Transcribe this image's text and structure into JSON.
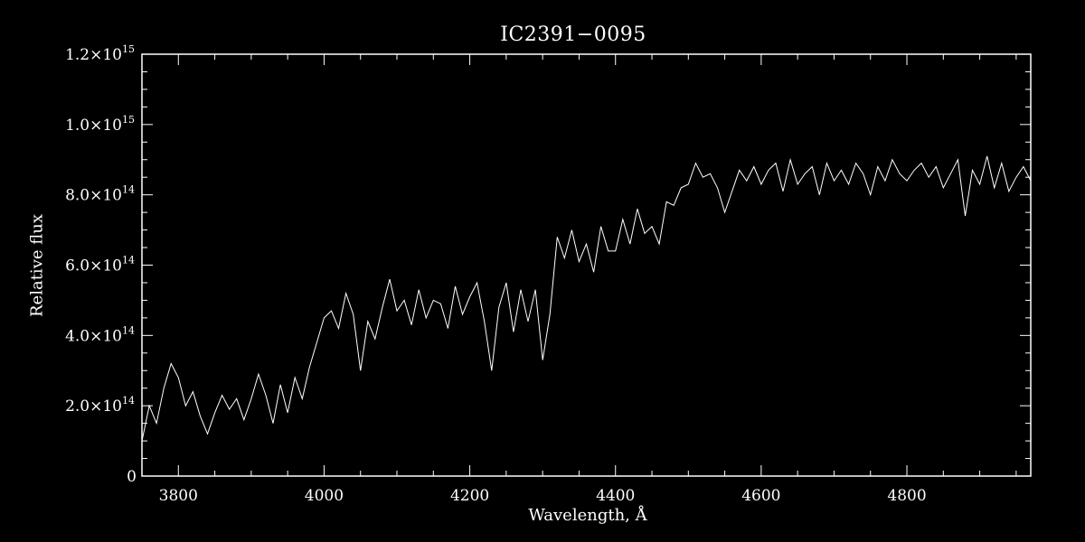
{
  "chart_data": {
    "type": "line",
    "title": "IC2391−0095",
    "xlabel": "Wavelength, Å",
    "ylabel": "Relative flux",
    "xlim": [
      3750,
      4970
    ],
    "ylim": [
      0,
      1200000000000000.0
    ],
    "x_ticks": [
      {
        "value": 3800,
        "label": "3800"
      },
      {
        "value": 4000,
        "label": "4000"
      },
      {
        "value": 4200,
        "label": "4200"
      },
      {
        "value": 4400,
        "label": "4400"
      },
      {
        "value": 4600,
        "label": "4600"
      },
      {
        "value": 4800,
        "label": "4800"
      }
    ],
    "y_ticks": [
      {
        "value": 0,
        "mantissa": "0",
        "exponent": ""
      },
      {
        "value": 200000000000000.0,
        "mantissa": "2.0×10",
        "exponent": "14"
      },
      {
        "value": 400000000000000.0,
        "mantissa": "4.0×10",
        "exponent": "14"
      },
      {
        "value": 600000000000000.0,
        "mantissa": "6.0×10",
        "exponent": "14"
      },
      {
        "value": 800000000000000.0,
        "mantissa": "8.0×10",
        "exponent": "14"
      },
      {
        "value": 1000000000000000.0,
        "mantissa": "1.0×10",
        "exponent": "15"
      },
      {
        "value": 1200000000000000.0,
        "mantissa": "1.2×10",
        "exponent": "15"
      }
    ],
    "grid": false,
    "legend": "none",
    "colors": {
      "background": "#000000",
      "foreground": "#ffffff"
    },
    "series": [
      {
        "x": [
          3750,
          3760,
          3770,
          3780,
          3790,
          3800,
          3810,
          3820,
          3830,
          3840,
          3850,
          3860,
          3870,
          3880,
          3890,
          3900,
          3910,
          3920,
          3930,
          3940,
          3950,
          3960,
          3970,
          3980,
          3990,
          4000,
          4010,
          4020,
          4030,
          4040,
          4050,
          4060,
          4070,
          4080,
          4090,
          4100,
          4110,
          4120,
          4130,
          4140,
          4150,
          4160,
          4170,
          4180,
          4190,
          4200,
          4210,
          4220,
          4230,
          4240,
          4250,
          4260,
          4270,
          4280,
          4290,
          4300,
          4310,
          4320,
          4330,
          4340,
          4350,
          4360,
          4370,
          4380,
          4390,
          4400,
          4410,
          4420,
          4430,
          4440,
          4450,
          4460,
          4470,
          4480,
          4490,
          4500,
          4510,
          4520,
          4530,
          4540,
          4550,
          4560,
          4570,
          4580,
          4590,
          4600,
          4610,
          4620,
          4630,
          4640,
          4650,
          4660,
          4670,
          4680,
          4690,
          4700,
          4710,
          4720,
          4730,
          4740,
          4750,
          4760,
          4770,
          4780,
          4790,
          4800,
          4810,
          4820,
          4830,
          4840,
          4850,
          4860,
          4870,
          4880,
          4890,
          4900,
          4910,
          4920,
          4930,
          4940,
          4950,
          4960,
          4970
        ],
        "y": [
          100000000000000.0,
          200000000000000.0,
          150000000000000.0,
          250000000000000.0,
          320000000000000.0,
          280000000000000.0,
          200000000000000.0,
          240000000000000.0,
          170000000000000.0,
          120000000000000.0,
          180000000000000.0,
          230000000000000.0,
          190000000000000.0,
          220000000000000.0,
          160000000000000.0,
          220000000000000.0,
          290000000000000.0,
          230000000000000.0,
          150000000000000.0,
          260000000000000.0,
          180000000000000.0,
          280000000000000.0,
          220000000000000.0,
          310000000000000.0,
          380000000000000.0,
          450000000000000.0,
          470000000000000.0,
          420000000000000.0,
          520000000000000.0,
          460000000000000.0,
          300000000000000.0,
          440000000000000.0,
          390000000000000.0,
          480000000000000.0,
          560000000000000.0,
          470000000000000.0,
          500000000000000.0,
          430000000000000.0,
          530000000000000.0,
          450000000000000.0,
          500000000000000.0,
          490000000000000.0,
          420000000000000.0,
          540000000000000.0,
          460000000000000.0,
          510000000000000.0,
          550000000000000.0,
          440000000000000.0,
          300000000000000.0,
          480000000000000.0,
          550000000000000.0,
          410000000000000.0,
          530000000000000.0,
          440000000000000.0,
          530000000000000.0,
          330000000000000.0,
          460000000000000.0,
          680000000000000.0,
          620000000000000.0,
          700000000000000.0,
          610000000000000.0,
          660000000000000.0,
          580000000000000.0,
          710000000000000.0,
          640000000000000.0,
          640000000000000.0,
          730000000000000.0,
          660000000000000.0,
          760000000000000.0,
          690000000000000.0,
          710000000000000.0,
          660000000000000.0,
          780000000000000.0,
          770000000000000.0,
          820000000000000.0,
          830000000000000.0,
          890000000000000.0,
          850000000000000.0,
          860000000000000.0,
          820000000000000.0,
          750000000000000.0,
          810000000000000.0,
          870000000000000.0,
          840000000000000.0,
          880000000000000.0,
          830000000000000.0,
          870000000000000.0,
          890000000000000.0,
          810000000000000.0,
          900000000000000.0,
          830000000000000.0,
          860000000000000.0,
          880000000000000.0,
          800000000000000.0,
          890000000000000.0,
          840000000000000.0,
          870000000000000.0,
          830000000000000.0,
          890000000000000.0,
          860000000000000.0,
          800000000000000.0,
          880000000000000.0,
          840000000000000.0,
          900000000000000.0,
          860000000000000.0,
          840000000000000.0,
          870000000000000.0,
          890000000000000.0,
          850000000000000.0,
          880000000000000.0,
          820000000000000.0,
          860000000000000.0,
          900000000000000.0,
          740000000000000.0,
          870000000000000.0,
          830000000000000.0,
          910000000000000.0,
          820000000000000.0,
          890000000000000.0,
          810000000000000.0,
          850000000000000.0,
          880000000000000.0,
          840000000000000.0
        ]
      }
    ]
  }
}
